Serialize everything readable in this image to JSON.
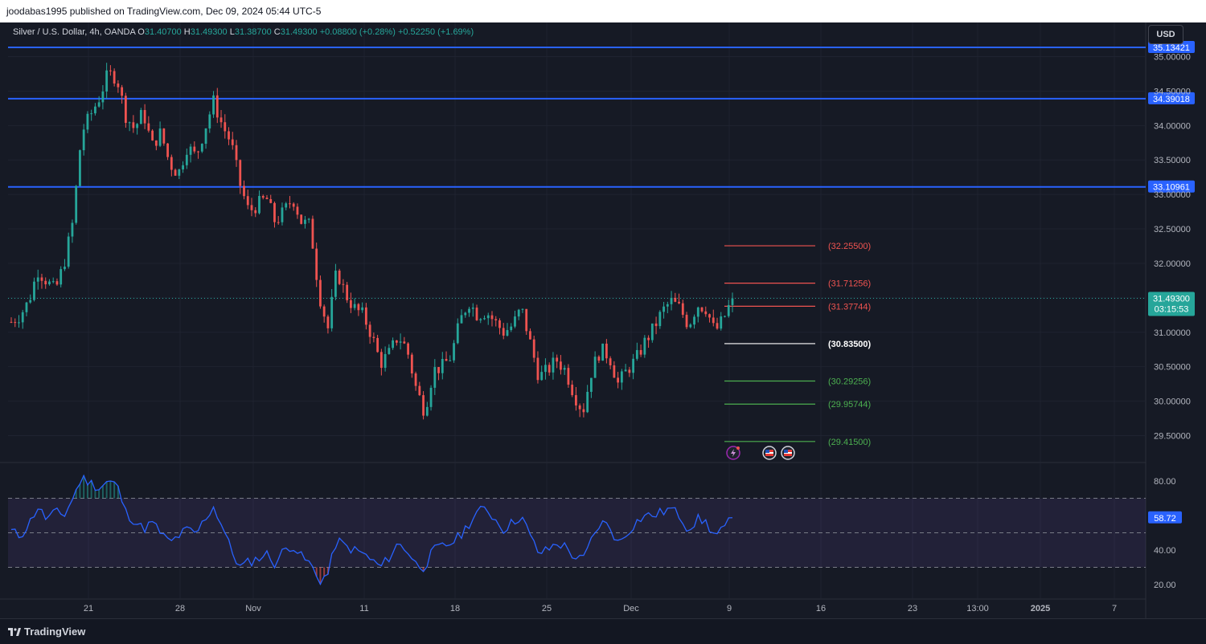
{
  "header": {
    "publisher_text": "joodabas1995 published on TradingView.com, Dec 09, 2024 05:44 UTC-5"
  },
  "legend": {
    "symbol": "Silver / U.S. Dollar, 4h, OANDA",
    "open_label": "O",
    "open": "31.40700",
    "high_label": "H",
    "high": "31.49300",
    "low_label": "L",
    "low": "31.38700",
    "close_label": "C",
    "close": "31.49300",
    "change": "+0.08800 (+0.28%)",
    "change2": "+0.52250 (+1.69%)"
  },
  "currency_button": "USD",
  "footer": {
    "brand": "TradingView"
  },
  "colors": {
    "up": "#26a69a",
    "down": "#ef5350",
    "hline": "#2962ff",
    "rsi": "#2962ff",
    "rsi_band": "#7e57c2",
    "target_up": "#ef5350",
    "target_down": "#4caf50"
  },
  "chart_data": [
    {
      "type": "candlestick",
      "series_name": "Silver / U.S. Dollar, 4h, OANDA",
      "x_tick_labels": [
        "21",
        "28",
        "Nov",
        "11",
        "18",
        "25",
        "Dec",
        "9",
        "16",
        "23",
        "13:00",
        "2025",
        "7"
      ],
      "y_tick_labels": [
        "35.00000",
        "34.50000",
        "34.00000",
        "33.50000",
        "33.00000",
        "32.50000",
        "32.00000",
        "31.50000",
        "31.00000",
        "30.50000",
        "30.00000",
        "29.50000"
      ],
      "ylim": [
        29.3,
        35.1
      ],
      "current_price": {
        "value": 31.493,
        "label": "31.49300",
        "countdown": "03:15:53"
      },
      "horizontal_lines": [
        {
          "value": 35.13421,
          "label": "35.13421"
        },
        {
          "value": 34.39018,
          "label": "34.39018"
        },
        {
          "value": 33.10961,
          "label": "33.10961"
        }
      ],
      "target_levels": [
        {
          "value": 32.255,
          "label": "(32.25500)",
          "kind": "above"
        },
        {
          "value": 31.71256,
          "label": "(31.71256)",
          "kind": "above"
        },
        {
          "value": 31.37744,
          "label": "(31.37744)",
          "kind": "above"
        },
        {
          "value": 30.835,
          "label": "(30.83500)",
          "kind": "pivot"
        },
        {
          "value": 30.29256,
          "label": "(30.29256)",
          "kind": "below"
        },
        {
          "value": 29.95744,
          "label": "(29.95744)",
          "kind": "below"
        },
        {
          "value": 29.415,
          "label": "(29.41500)",
          "kind": "below"
        }
      ],
      "close_path": [
        31.15,
        31.25,
        31.45,
        31.9,
        31.75,
        31.6,
        32.0,
        32.6,
        33.9,
        34.15,
        34.4,
        34.75,
        34.7,
        34.15,
        33.95,
        34.2,
        33.7,
        33.9,
        33.45,
        33.3,
        33.7,
        33.55,
        33.95,
        34.35,
        34.0,
        33.75,
        33.15,
        32.75,
        32.85,
        32.95,
        32.6,
        32.75,
        32.95,
        32.6,
        32.55,
        31.55,
        31.05,
        31.9,
        31.55,
        31.35,
        31.25,
        30.95,
        30.55,
        30.7,
        30.95,
        30.75,
        30.2,
        29.85,
        30.45,
        30.5,
        30.65,
        31.15,
        31.45,
        31.25,
        31.3,
        31.15,
        31.0,
        31.1,
        31.35,
        30.85,
        30.35,
        30.45,
        30.6,
        30.45,
        30.1,
        29.85,
        30.45,
        30.75,
        30.65,
        30.25,
        30.45,
        30.6,
        30.85,
        31.05,
        31.3,
        31.45,
        31.35,
        31.1,
        31.4,
        31.35,
        31.0,
        31.2,
        31.49
      ]
    },
    {
      "type": "line",
      "series_name": "RSI",
      "y_tick_labels": [
        "80.00",
        "40.00",
        "20.00"
      ],
      "ylim": [
        18,
        87
      ],
      "levels": [
        70,
        50,
        30
      ],
      "current_value": {
        "value": 58.72,
        "label": "58.72"
      },
      "values": [
        51,
        48,
        55,
        65,
        58,
        62,
        60,
        70,
        82,
        79,
        76,
        80,
        78,
        62,
        57,
        52,
        56,
        50,
        44,
        48,
        52,
        49,
        58,
        65,
        54,
        40,
        30,
        33,
        35,
        38,
        32,
        40,
        43,
        36,
        32,
        22,
        26,
        46,
        42,
        40,
        38,
        34,
        30,
        36,
        44,
        40,
        32,
        30,
        40,
        42,
        44,
        48,
        55,
        62,
        64,
        58,
        52,
        56,
        60,
        48,
        38,
        40,
        44,
        42,
        36,
        34,
        46,
        56,
        54,
        44,
        50,
        56,
        60,
        60,
        62,
        64,
        60,
        52,
        58,
        56,
        48,
        52,
        58.72
      ]
    }
  ]
}
